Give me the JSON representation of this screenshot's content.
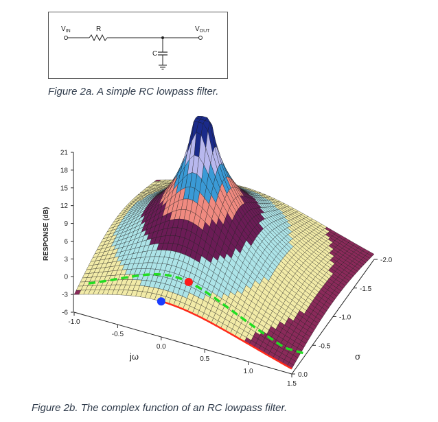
{
  "circuit": {
    "vin_label": "V",
    "vin_sub": "IN",
    "r_label": "R",
    "c_label": "C",
    "vout_label": "V",
    "vout_sub": "OUT"
  },
  "captions": {
    "fig_a": "Figure 2a. A simple RC lowpass filter.",
    "fig_b": "Figure 2b. The complex function of an RC lowpass filter."
  },
  "chart_data": {
    "type": "surface",
    "ylabel": "RESPONSE (dB)",
    "z_ticks": [
      "21",
      "18",
      "15",
      "12",
      "9",
      "6",
      "3",
      "0",
      "-3",
      "-6"
    ],
    "jw_label": "jω",
    "jw_ticks": [
      "-1.0",
      "-0.5",
      "0.0",
      "0.5",
      "1.0",
      "1.5"
    ],
    "sigma_label": "σ",
    "sigma_ticks": [
      "-2.0",
      "-1.5",
      "-1.0",
      "-0.5",
      "0.0"
    ],
    "z_range": [
      -6,
      21
    ],
    "jw_range": [
      -1.0,
      1.5
    ],
    "sigma_range": [
      -2.0,
      0.0
    ],
    "pole": {
      "sigma": -1.0,
      "jw": 0.0
    },
    "markers": [
      {
        "name": "dc-point",
        "color": "#1a3cff"
      },
      {
        "name": "cutoff-point",
        "color": "#ff1a1a"
      }
    ],
    "band_colors": [
      "#8a2a5a",
      "#f2eba8",
      "#ade4e8",
      "#6b1c56",
      "#f08a80",
      "#3a9ad6",
      "#b8b8ee",
      "#1a2a8a"
    ],
    "curves": [
      {
        "name": "jw-axis-response",
        "color": "#ff2a1a"
      },
      {
        "name": "cutoff-path",
        "color": "#22dd22"
      }
    ]
  }
}
